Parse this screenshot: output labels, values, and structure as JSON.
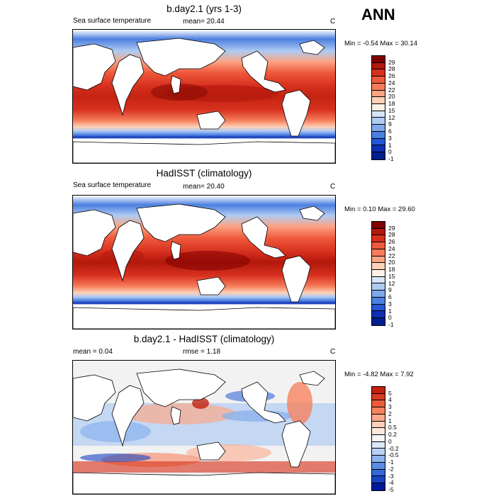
{
  "season": "ANN",
  "panels": [
    {
      "title": "b.day2.1 (yrs 1-3)",
      "left_label": "Sea surface temperature",
      "mean_label": "mean=  20.44",
      "units": "C",
      "minmax": "Min =  -0.54 Max =  30.14",
      "colorbar": {
        "levels": [
          "29",
          "28",
          "26",
          "24",
          "22",
          "20",
          "18",
          "15",
          "12",
          "9",
          "6",
          "3",
          "1",
          "0",
          "-1"
        ],
        "colors": [
          "#7f0000",
          "#b2180b",
          "#d7301f",
          "#ef5a3c",
          "#f67c5a",
          "#fba384",
          "#fdd0b8",
          "#fdf1e8",
          "#d6e5f8",
          "#afcbf2",
          "#7fa8ea",
          "#4b7fe0",
          "#2456d6",
          "#0d2fb4",
          "#001f8e"
        ]
      }
    },
    {
      "title": "HadISST (climatology)",
      "left_label": "Sea surface temperature",
      "mean_label": "mean=  20.40",
      "units": "C",
      "minmax": "Min =  0.10 Max =  29.60",
      "colorbar": {
        "levels": [
          "29",
          "28",
          "26",
          "24",
          "22",
          "20",
          "18",
          "15",
          "12",
          "9",
          "6",
          "3",
          "1",
          "0",
          "-1"
        ],
        "colors": [
          "#7f0000",
          "#b2180b",
          "#d7301f",
          "#ef5a3c",
          "#f67c5a",
          "#fba384",
          "#fdd0b8",
          "#fdf1e8",
          "#d6e5f8",
          "#afcbf2",
          "#7fa8ea",
          "#4b7fe0",
          "#2456d6",
          "#0d2fb4",
          "#001f8e"
        ]
      }
    },
    {
      "title": "b.day2.1 - HadISST (climatology)",
      "left_label": "mean =   0.04",
      "mean_label": "rmse =   1.18",
      "units": "C",
      "minmax": "Min =  -4.82 Max =   7.92",
      "colorbar": {
        "levels": [
          "5",
          "4",
          "3",
          "2",
          "1",
          "0.5",
          "0.2",
          "0",
          "-0.2",
          "-0.5",
          "-1",
          "-2",
          "-3",
          "-4",
          "-5"
        ],
        "colors": [
          "#c0220e",
          "#d83a22",
          "#ec5a3c",
          "#f6825f",
          "#fbaa8c",
          "#fdcfb8",
          "#fde8dc",
          "#f6f6f6",
          "#dce8f8",
          "#b8d0f3",
          "#8cb2ec",
          "#5c8de4",
          "#3468d8",
          "#1843c2",
          "#00199a"
        ]
      }
    }
  ]
}
